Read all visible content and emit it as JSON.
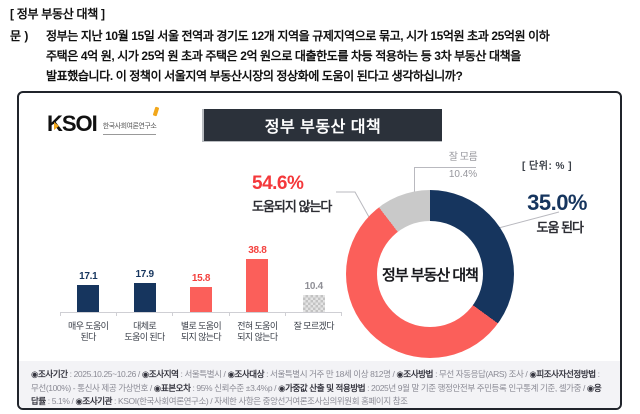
{
  "header": {
    "bracket_title": "[ 정부 부동산 대책 ]",
    "question_prefix": "문 )",
    "question_lines": {
      "line1": "정부는 지난 10월 15일 서울 전역과 경기도 12개 지역을 규제지역으로 묶고, 시가 15억원 초과 25억원 이하",
      "line2": "주택은 4억 원, 시가 25억 원 초과 주택은 2억 원으로 대출한도를 차등 적용하는 등 3차 부동산 대책을",
      "line3": "발표했습니다. 이 정책이 서울지역 부동산시장의 정상화에 도움이 된다고 생각하십니까?"
    }
  },
  "logo": {
    "text": "KSOI",
    "subtitle": "한국사회여론연구소"
  },
  "banner": {
    "title": "정부 부동산 대책"
  },
  "unit_label": "[ 단위: % ]",
  "chart_data": [
    {
      "type": "bar",
      "title": "정부 부동산 대책",
      "categories": [
        "매우 도움이 된다",
        "대체로 도움이 된다",
        "별로 도움이 되지 않는다",
        "전혀 도움이 되지 않는다",
        "잘 모르겠다"
      ],
      "values": [
        17.1,
        17.9,
        15.8,
        38.8,
        10.4
      ],
      "colors": [
        "#16355e",
        "#16355e",
        "#fb5f5a",
        "#fb5f5a",
        "#c9c9c9"
      ],
      "ylim": [
        0,
        42
      ],
      "grid": "off",
      "unit": "%"
    },
    {
      "type": "pie",
      "style": "donut",
      "title": "정부 부동산 대책",
      "center_label": "정부 부동산 대책",
      "slices": [
        {
          "label": "도움 된다",
          "value": 35.0,
          "color": "#16355e"
        },
        {
          "label": "도움되지 않는다",
          "value": 54.6,
          "color": "#fb5f5a"
        },
        {
          "label": "잘 모름",
          "value": 10.4,
          "color": "#c9c9c9"
        }
      ],
      "start_angle_deg": 0,
      "direction": "clockwise"
    }
  ],
  "bar_chart": {
    "bars": [
      {
        "value": "17.1",
        "label_line1": "매우 도움이",
        "label_line2": "된다",
        "value_color": "#16355e",
        "pattern": false
      },
      {
        "value": "17.9",
        "label_line1": "대체로",
        "label_line2": "도움이 된다",
        "value_color": "#16355e",
        "pattern": false
      },
      {
        "value": "15.8",
        "label_line1": "별로 도움이",
        "label_line2": "되지 않는다",
        "value_color": "#f4413e",
        "pattern": false
      },
      {
        "value": "38.8",
        "label_line1": "전혀 도움이",
        "label_line2": "되지 않는다",
        "value_color": "#f4413e",
        "pattern": false
      },
      {
        "value": "10.4",
        "label_line1": "잘 모르겠다",
        "label_line2": "",
        "value_color": "#8f8f96",
        "pattern": true
      }
    ]
  },
  "donut": {
    "center_label": "정부 부동산 대책",
    "annotations": {
      "negative": {
        "pct": "54.6%",
        "label": "도움되지 않는다"
      },
      "positive": {
        "pct": "35.0%",
        "label": "도움 된다"
      },
      "neutral": {
        "pct": "10.4%",
        "label": "잘 모름"
      }
    }
  },
  "footer": {
    "segments": [
      {
        "label": "◉조사기간",
        "value": " : 2025.10.25~10.26 / "
      },
      {
        "label": "◉조사지역",
        "value": " : 서울특별시 / "
      },
      {
        "label": "◉조사대상",
        "value": " : 서울특별시 거주 만 18세 이상 812명 / "
      },
      {
        "label": "◉조사방법",
        "value": " : 무선 자동응답(ARS) 조사 / "
      },
      {
        "label": "◉피조사자선정방법",
        "value": " : 무선(100%) - 통신사 제공 가상번호 / "
      },
      {
        "label": "◉표본오차",
        "value": " : 95% 신뢰수준 ±3.4%p / "
      },
      {
        "label": "◉가중값 산출 및 적용방법",
        "value": " : 2025년 9월 말 기준 행정안전부 주민등록 인구통계 기준, 셀가중 / "
      },
      {
        "label": "◉응답률",
        "value": " : 5.1% / "
      },
      {
        "label": "◉조사기관",
        "value": " : KSOI(한국사회여론연구소) / "
      },
      {
        "label": "",
        "value": "자세한 사항은 중앙선거여론조사심의위원회 홈페이지 참조"
      }
    ]
  },
  "colors": {
    "navy": "#16355e",
    "coral": "#fb5f5a",
    "gray": "#c9c9c9",
    "banner_bg": "#2b313a",
    "accent_orange": "#f2a71b",
    "red_text": "#f4383b"
  }
}
